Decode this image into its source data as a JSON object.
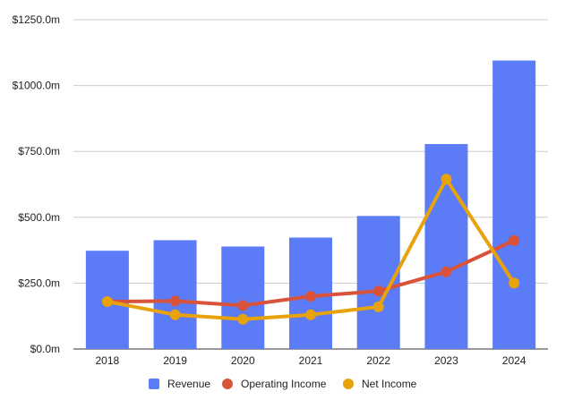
{
  "chart_data": {
    "type": "bar",
    "categories": [
      "2018",
      "2019",
      "2020",
      "2021",
      "2022",
      "2023",
      "2024"
    ],
    "ylim": [
      0,
      1250
    ],
    "yticks": [
      0,
      250,
      500,
      750,
      1000,
      1250
    ],
    "ytick_labels": [
      "$0.0m",
      "$250.0m",
      "$500.0m",
      "$750.0m",
      "$1000.0m",
      "$1250.0m"
    ],
    "grid": true,
    "legend_position": "bottom",
    "series": [
      {
        "name": "Revenue",
        "type": "bar",
        "color": "#5c7cf7",
        "values": [
          373,
          413,
          389,
          423,
          505,
          778,
          1095
        ]
      },
      {
        "name": "Operating Income",
        "type": "line",
        "color": "#d9533a",
        "values": [
          180,
          182,
          165,
          200,
          220,
          293,
          412
        ]
      },
      {
        "name": "Net Income",
        "type": "line",
        "color": "#e8a20c",
        "values": [
          180,
          130,
          113,
          130,
          160,
          645,
          250
        ]
      }
    ]
  }
}
